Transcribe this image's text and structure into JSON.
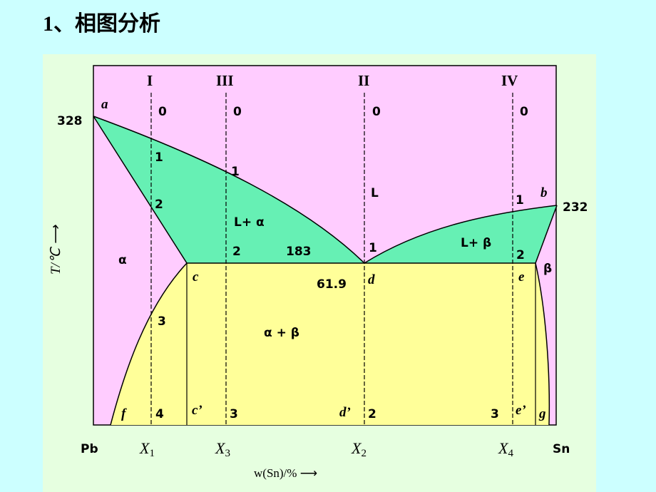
{
  "title": "1、相图分析",
  "colors": {
    "background": "#ccffff",
    "panel": "#e6ffe0",
    "alpha_region": "#ffccff",
    "two_phase_liquid": "#66f0b4",
    "eutectic_region": "#ffff99"
  },
  "axes": {
    "y_label": "T/℃ ⟶",
    "x_label": "w(Sn)/% ⟶",
    "left_end": "Pb",
    "right_end": "Sn"
  },
  "points": {
    "a": "a",
    "b": "b",
    "c": "c",
    "d": "d",
    "e": "e",
    "f": "f",
    "g": "g",
    "c_prime": "c’",
    "d_prime": "d’",
    "e_prime": "e’"
  },
  "temperatures": {
    "pb_melt": "328",
    "sn_melt": "232",
    "eutectic": "183"
  },
  "eutectic_composition": "61.9",
  "phases": {
    "alpha": "α",
    "liquid": "L",
    "l_alpha": "L+ α",
    "l_beta": "L+ β",
    "alpha_beta": "α + β",
    "beta": "β"
  },
  "alloys": [
    {
      "roman": "I",
      "x_main": "X",
      "x_sub": "1",
      "steps": [
        "0",
        "1",
        "2",
        "3",
        "4"
      ]
    },
    {
      "roman": "III",
      "x_main": "X",
      "x_sub": "3",
      "steps": [
        "0",
        "1",
        "2",
        "3"
      ]
    },
    {
      "roman": "II",
      "x_main": "X",
      "x_sub": "2",
      "steps": [
        "0",
        "1",
        "2"
      ]
    },
    {
      "roman": "IV",
      "x_main": "X",
      "x_sub": "4",
      "steps": [
        "0",
        "1",
        "2",
        "3"
      ]
    }
  ]
}
